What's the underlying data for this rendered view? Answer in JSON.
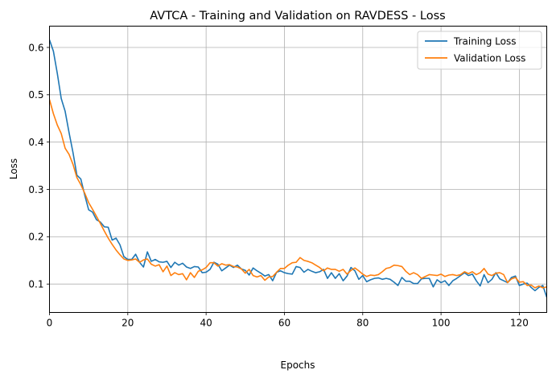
{
  "chart_data": {
    "type": "line",
    "title": "AVTCA - Training and Validation on RAVDESS - Loss",
    "xlabel": "Epochs",
    "ylabel": "Loss",
    "xlim": [
      0,
      127
    ],
    "ylim": [
      0.04,
      0.645
    ],
    "xticks": [
      0,
      20,
      40,
      60,
      80,
      100,
      120
    ],
    "yticks": [
      0.1,
      0.2,
      0.3,
      0.4,
      0.5,
      0.6
    ],
    "xtick_labels": [
      "0",
      "20",
      "40",
      "60",
      "80",
      "100",
      "120"
    ],
    "ytick_labels": [
      "0.1",
      "0.2",
      "0.3",
      "0.4",
      "0.5",
      "0.6"
    ],
    "grid": true,
    "legend_position": "top-right",
    "series": [
      {
        "name": "Training Loss",
        "color": "#1f77b4",
        "values": [
          0.616,
          0.592,
          0.545,
          0.492,
          0.465,
          0.42,
          0.378,
          0.33,
          0.322,
          0.288,
          0.257,
          0.252,
          0.236,
          0.231,
          0.221,
          0.22,
          0.193,
          0.197,
          0.183,
          0.158,
          0.152,
          0.152,
          0.163,
          0.146,
          0.136,
          0.168,
          0.148,
          0.152,
          0.147,
          0.146,
          0.148,
          0.135,
          0.146,
          0.14,
          0.144,
          0.136,
          0.133,
          0.137,
          0.136,
          0.124,
          0.125,
          0.131,
          0.146,
          0.142,
          0.128,
          0.134,
          0.14,
          0.135,
          0.14,
          0.132,
          0.129,
          0.119,
          0.134,
          0.128,
          0.123,
          0.117,
          0.12,
          0.107,
          0.125,
          0.128,
          0.124,
          0.122,
          0.121,
          0.137,
          0.135,
          0.125,
          0.131,
          0.127,
          0.124,
          0.126,
          0.131,
          0.112,
          0.124,
          0.112,
          0.122,
          0.107,
          0.117,
          0.135,
          0.128,
          0.11,
          0.118,
          0.105,
          0.109,
          0.112,
          0.113,
          0.11,
          0.112,
          0.11,
          0.104,
          0.097,
          0.114,
          0.106,
          0.106,
          0.101,
          0.101,
          0.111,
          0.112,
          0.112,
          0.094,
          0.109,
          0.103,
          0.107,
          0.097,
          0.107,
          0.112,
          0.118,
          0.124,
          0.118,
          0.121,
          0.107,
          0.096,
          0.12,
          0.103,
          0.11,
          0.124,
          0.111,
          0.107,
          0.103,
          0.114,
          0.117,
          0.097,
          0.1,
          0.102,
          0.093,
          0.086,
          0.093,
          0.097,
          0.072
        ]
      },
      {
        "name": "Validation Loss",
        "color": "#ff7f0e",
        "values": [
          0.49,
          0.46,
          0.436,
          0.418,
          0.387,
          0.374,
          0.353,
          0.325,
          0.31,
          0.292,
          0.272,
          0.258,
          0.243,
          0.228,
          0.212,
          0.197,
          0.184,
          0.172,
          0.162,
          0.153,
          0.15,
          0.151,
          0.153,
          0.146,
          0.151,
          0.153,
          0.142,
          0.138,
          0.141,
          0.126,
          0.138,
          0.118,
          0.124,
          0.12,
          0.122,
          0.109,
          0.124,
          0.114,
          0.127,
          0.13,
          0.135,
          0.145,
          0.145,
          0.138,
          0.143,
          0.14,
          0.141,
          0.137,
          0.136,
          0.132,
          0.123,
          0.131,
          0.118,
          0.115,
          0.118,
          0.108,
          0.115,
          0.116,
          0.125,
          0.133,
          0.133,
          0.14,
          0.145,
          0.146,
          0.156,
          0.15,
          0.148,
          0.145,
          0.14,
          0.135,
          0.128,
          0.134,
          0.131,
          0.131,
          0.127,
          0.131,
          0.121,
          0.129,
          0.134,
          0.128,
          0.121,
          0.116,
          0.119,
          0.118,
          0.12,
          0.126,
          0.133,
          0.135,
          0.14,
          0.139,
          0.137,
          0.127,
          0.12,
          0.124,
          0.12,
          0.112,
          0.116,
          0.12,
          0.119,
          0.118,
          0.121,
          0.116,
          0.119,
          0.12,
          0.118,
          0.12,
          0.126,
          0.122,
          0.126,
          0.12,
          0.124,
          0.133,
          0.121,
          0.118,
          0.123,
          0.124,
          0.12,
          0.103,
          0.111,
          0.114,
          0.104,
          0.105,
          0.097,
          0.098,
          0.092,
          0.096,
          0.092,
          0.094
        ]
      }
    ]
  }
}
